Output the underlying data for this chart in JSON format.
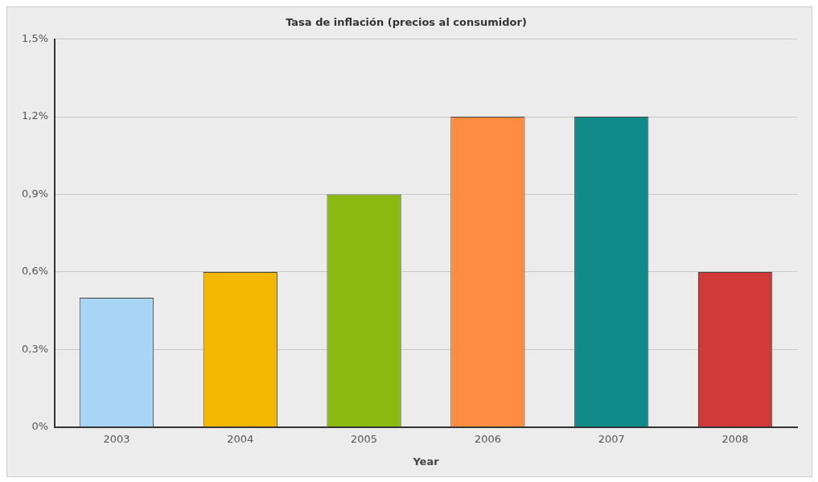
{
  "chart_data": {
    "type": "bar",
    "title": "Tasa de inflación (precios al consumidor)",
    "xlabel": "Year",
    "categories": [
      "2003",
      "2004",
      "2005",
      "2006",
      "2007",
      "2008"
    ],
    "values": [
      0.5,
      0.6,
      0.9,
      1.2,
      1.2,
      0.6
    ],
    "colors": [
      "#a8d4f5",
      "#f5b800",
      "#8aba10",
      "#ff8c40",
      "#0f8a88",
      "#d23a3a"
    ],
    "ylim": [
      0,
      1.5
    ],
    "yticks": [
      {
        "value": 0,
        "label": "0%"
      },
      {
        "value": 0.3,
        "label": "0,3%"
      },
      {
        "value": 0.6,
        "label": "0,6%"
      },
      {
        "value": 0.9,
        "label": "0,9%"
      },
      {
        "value": 1.2,
        "label": "1,2%"
      },
      {
        "value": 1.5,
        "label": "1,5%"
      }
    ],
    "grid": "y",
    "legend": false
  }
}
